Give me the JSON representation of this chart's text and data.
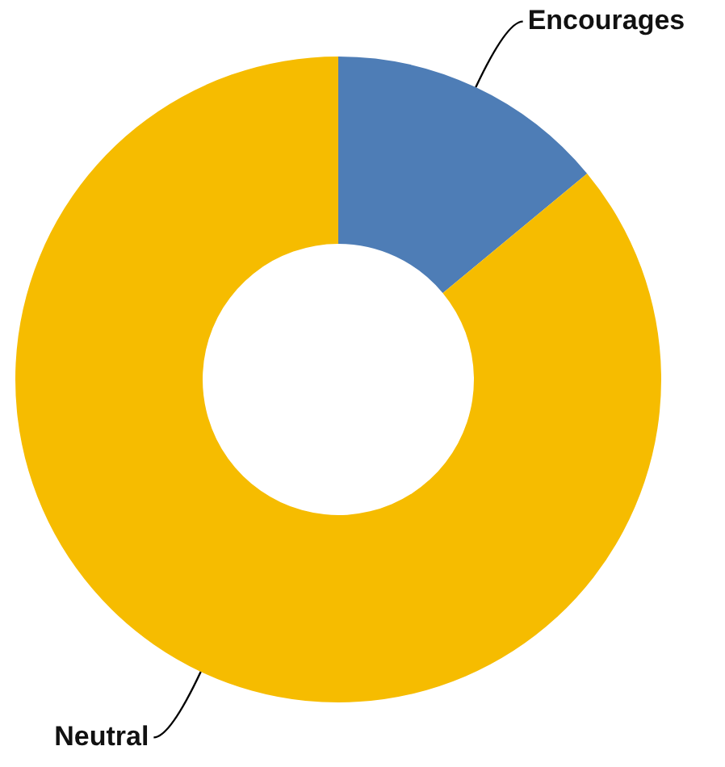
{
  "chart_data": {
    "type": "donut",
    "categories": [
      "Encourages",
      "Neutral"
    ],
    "values": [
      14,
      86
    ],
    "colors": [
      "#4e7db6",
      "#f6bc00"
    ],
    "legend": false
  }
}
